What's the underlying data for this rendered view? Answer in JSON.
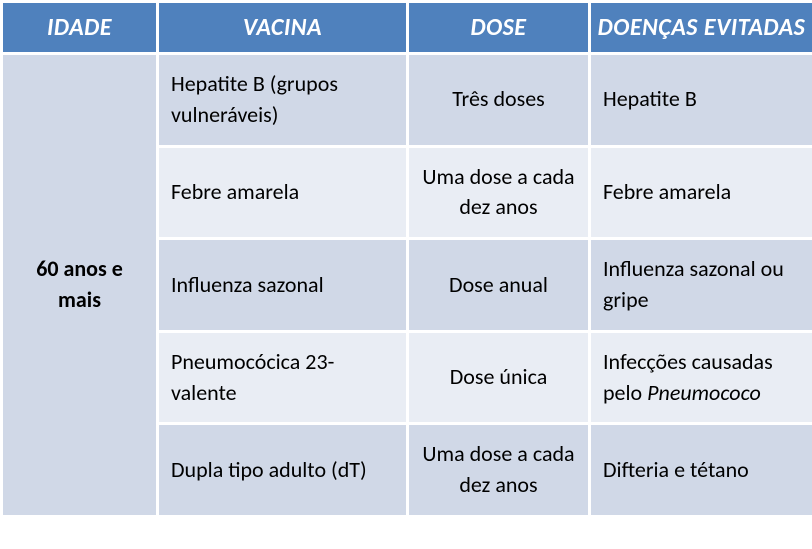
{
  "table": {
    "header_bg": "#4f81bd",
    "row_bg_even": "#d0d8e7",
    "row_bg_odd": "#e9edf4",
    "columns": [
      "IDADE",
      "VACINA",
      "DOSE",
      "DOENÇAS EVITADAS"
    ],
    "age_label": "60 anos e mais",
    "rows": [
      {
        "vaccine": "Hepatite B (grupos vulneráveis)",
        "dose": "Três doses",
        "disease": "Hepatite B"
      },
      {
        "vaccine": "Febre amarela",
        "dose": "Uma dose a cada dez anos",
        "disease": "Febre amarela"
      },
      {
        "vaccine": "Influenza sazonal",
        "dose": "Dose anual",
        "disease": "Influenza sazonal ou gripe"
      },
      {
        "vaccine": "Pneumocócica 23-valente",
        "dose": "Dose única",
        "disease_prefix": "Infecções causadas pelo ",
        "disease_italic": "Pneumococo"
      },
      {
        "vaccine": "Dupla tipo adulto (dT)",
        "dose": "Uma dose a cada dez anos",
        "disease": "Difteria e tétano"
      }
    ]
  }
}
